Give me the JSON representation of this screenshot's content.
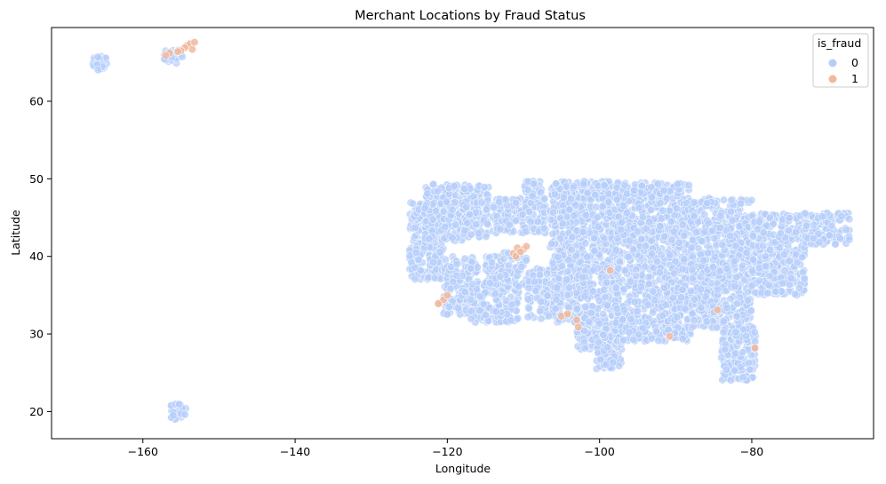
{
  "chart_data": {
    "type": "scatter",
    "title": "Merchant Locations by Fraud Status",
    "xlabel": "Longitude",
    "ylabel": "Latitude",
    "xlim": [
      -172,
      -64
    ],
    "ylim": [
      16.5,
      69.5
    ],
    "xticks": [
      -160,
      -140,
      -120,
      -100,
      -80
    ],
    "xtick_labels": [
      "−160",
      "−140",
      "−120",
      "−100",
      "−80"
    ],
    "yticks": [
      20,
      30,
      40,
      50,
      60
    ],
    "ytick_labels": [
      "20",
      "30",
      "40",
      "50",
      "60"
    ],
    "grid": false,
    "legend": {
      "title": "is_fraud",
      "placement": "top-right",
      "entries": [
        {
          "label": "0",
          "color": "#b5cdfb"
        },
        {
          "label": "1",
          "color": "#f1b89e"
        }
      ]
    },
    "series": [
      {
        "name": "0",
        "color": "#b5cdfb",
        "regions": [
          {
            "x": [
              -166.8,
              -164.7
            ],
            "y": [
              64.0,
              65.8
            ]
          },
          {
            "x": [
              -157.2,
              -154.8
            ],
            "y": [
              64.9,
              66.6
            ]
          },
          {
            "x": [
              -156.5,
              -154.3
            ],
            "y": [
              19.0,
              21.0
            ]
          },
          {
            "x": [
              -125.0,
              -120.5
            ],
            "y": [
              37.0,
              47.0
            ]
          },
          {
            "x": [
              -123.0,
              -117.5
            ],
            "y": [
              42.0,
              49.5
            ]
          },
          {
            "x": [
              -118.0,
              -114.5
            ],
            "y": [
              42.5,
              49.3
            ]
          },
          {
            "x": [
              -120.5,
              -116.0
            ],
            "y": [
              32.5,
              40.0
            ]
          },
          {
            "x": [
              -117.0,
              -110.5
            ],
            "y": [
              31.5,
              36.5
            ]
          },
          {
            "x": [
              -115.0,
              -109.5
            ],
            "y": [
              36.0,
              40.5
            ]
          },
          {
            "x": [
              -114.0,
              -107.0
            ],
            "y": [
              43.0,
              47.5
            ]
          },
          {
            "x": [
              -110.0,
              -107.5
            ],
            "y": [
              47.5,
              49.7
            ]
          },
          {
            "x": [
              -109.5,
              -103.0
            ],
            "y": [
              31.5,
              38.5
            ]
          },
          {
            "x": [
              -106.5,
              -98.0
            ],
            "y": [
              38.0,
              49.7
            ]
          },
          {
            "x": [
              -103.0,
              -97.5
            ],
            "y": [
              28.0,
              38.5
            ]
          },
          {
            "x": [
              -100.5,
              -97.0
            ],
            "y": [
              25.5,
              30.0
            ]
          },
          {
            "x": [
              -98.0,
              -88.0
            ],
            "y": [
              29.0,
              49.5
            ]
          },
          {
            "x": [
              -88.0,
              -80.0
            ],
            "y": [
              30.5,
              47.5
            ]
          },
          {
            "x": [
              -84.0,
              -79.5
            ],
            "y": [
              24.0,
              31.0
            ]
          },
          {
            "x": [
              -80.0,
              -73.0
            ],
            "y": [
              35.0,
              45.5
            ]
          },
          {
            "x": [
              -73.0,
              -67.0
            ],
            "y": [
              41.5,
              45.6
            ]
          }
        ]
      },
      {
        "name": "1",
        "color": "#f1b89e",
        "points": [
          [
            -154.2,
            67.2
          ],
          [
            -153.8,
            67.4
          ],
          [
            -153.2,
            67.6
          ],
          [
            -154.5,
            66.9
          ],
          [
            -155.0,
            66.5
          ],
          [
            -153.5,
            66.7
          ],
          [
            -156.5,
            66.2
          ],
          [
            -155.4,
            66.4
          ],
          [
            -157.0,
            65.9
          ],
          [
            -121.0,
            34.0
          ],
          [
            -120.5,
            34.4
          ],
          [
            -121.2,
            33.9
          ],
          [
            -120.0,
            35.0
          ],
          [
            -111.3,
            40.4
          ],
          [
            -110.8,
            41.1
          ],
          [
            -110.0,
            40.9
          ],
          [
            -111.0,
            40.0
          ],
          [
            -110.4,
            40.6
          ],
          [
            -109.6,
            41.3
          ],
          [
            -105.0,
            32.3
          ],
          [
            -104.2,
            32.6
          ],
          [
            -103.0,
            31.8
          ],
          [
            -102.8,
            30.9
          ],
          [
            -98.6,
            38.2
          ],
          [
            -90.8,
            29.7
          ],
          [
            -79.6,
            28.2
          ],
          [
            -84.5,
            33.1
          ]
        ]
      }
    ]
  }
}
